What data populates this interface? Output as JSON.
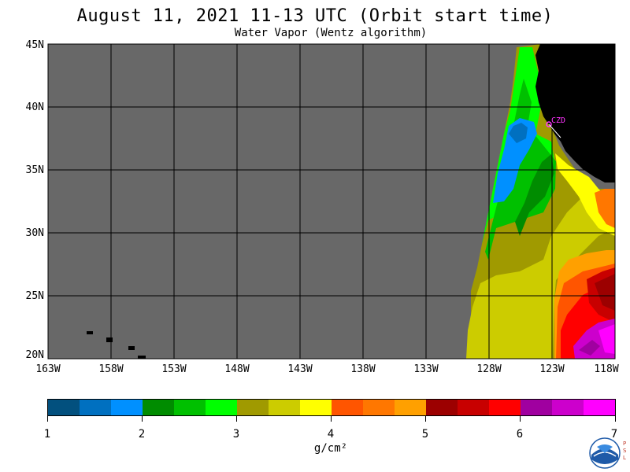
{
  "title": "August 11, 2021  11-13 UTC  (Orbit start time)",
  "subtitle": "Water Vapor (Wentz algorithm)",
  "lat_labels": [
    "45N",
    "40N",
    "35N",
    "30N",
    "25N",
    "20N"
  ],
  "lon_labels": [
    "163W",
    "158W",
    "153W",
    "148W",
    "143W",
    "138W",
    "133W",
    "128W",
    "123W",
    "118W"
  ],
  "station_label": "CZD",
  "colorbar": {
    "colors": [
      "#02507e",
      "#0070c0",
      "#0090ff",
      "#008c00",
      "#00c000",
      "#00ff00",
      "#a09a00",
      "#cccc00",
      "#ffff00",
      "#ff5500",
      "#ff7700",
      "#ffa000",
      "#9c0000",
      "#c80000",
      "#ff0000",
      "#a000a0",
      "#cc00cc",
      "#ff00ff"
    ],
    "ticks": [
      "1",
      "2",
      "3",
      "4",
      "5",
      "6",
      "7"
    ],
    "units": "g/cm²"
  },
  "map_colors": {
    "no_data": "#686868",
    "land": "#000000",
    "grid": "#000000",
    "station": "#ff33ff"
  },
  "logo_text": "NOAA",
  "side_text": "PSL"
}
